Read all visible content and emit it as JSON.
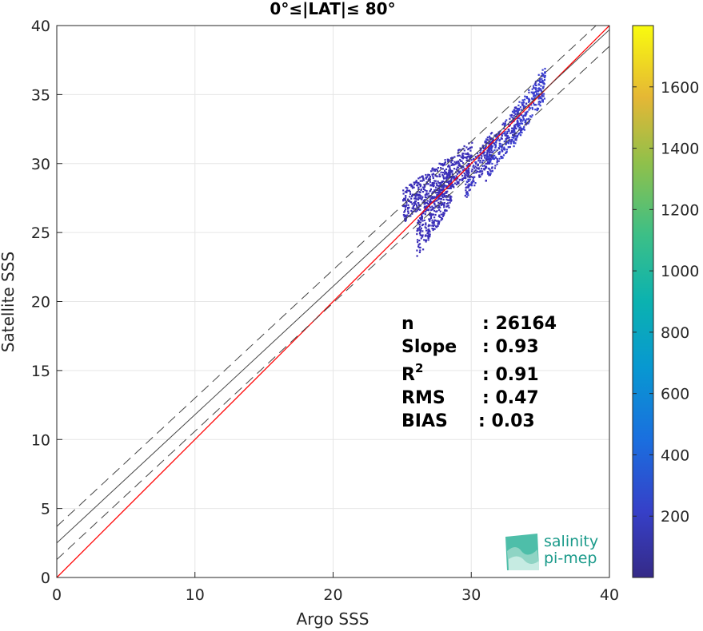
{
  "chart_data": {
    "type": "heatmap",
    "title": "0°≤|LAT|≤ 80°",
    "xlabel": "Argo SSS",
    "ylabel": "Satellite SSS",
    "xlim": [
      0,
      40
    ],
    "ylim": [
      0,
      40
    ],
    "xticks": [
      "0",
      "10",
      "20",
      "30",
      "40"
    ],
    "yticks": [
      "0",
      "5",
      "10",
      "15",
      "20",
      "25",
      "30",
      "35",
      "40"
    ],
    "grid": true,
    "colorbar": {
      "colormap": "parula",
      "range": [
        0,
        1800
      ],
      "ticks": [
        "200",
        "400",
        "600",
        "800",
        "1000",
        "1200",
        "1400",
        "1600"
      ]
    },
    "lines": [
      {
        "name": "identity",
        "color": "#ff0000",
        "slope": 1.0,
        "intercept": 0.0,
        "style": "solid"
      },
      {
        "name": "regression",
        "color": "#444444",
        "slope": 0.93,
        "intercept": 2.5,
        "style": "solid"
      },
      {
        "name": "regression-upper",
        "color": "#444444",
        "slope": 0.93,
        "intercept": 3.7,
        "style": "dashed"
      },
      {
        "name": "regression-lower",
        "color": "#444444",
        "slope": 0.93,
        "intercept": 1.3,
        "style": "dashed"
      }
    ],
    "density_regions": [
      {
        "x": [
          33.0,
          35.3
        ],
        "y": [
          32.5,
          36.0
        ],
        "level": 150
      },
      {
        "x": [
          31.0,
          33.5
        ],
        "y": [
          30.0,
          33.5
        ],
        "level": 120
      },
      {
        "x": [
          29.5,
          31.5
        ],
        "y": [
          28.5,
          31.5
        ],
        "level": 90
      },
      {
        "x": [
          26.0,
          28.5
        ],
        "y": [
          24.5,
          28.5
        ],
        "level": 60
      },
      {
        "x": [
          25.0,
          30.0
        ],
        "y": [
          27.0,
          30.5
        ],
        "level": 40
      }
    ],
    "stats": {
      "n_label": "n",
      "n_value": ": 26164",
      "slope_label": "Slope",
      "slope_value": ": 0.93",
      "r2_label": "R",
      "r2_sup": "2",
      "r2_value": ": 0.91",
      "rms_label": "RMS",
      "rms_value": ": 0.47",
      "bias_label": "BIAS",
      "bias_value": ": 0.03"
    }
  },
  "logo": {
    "line1": "salinity",
    "line2": "pi-mep",
    "color": "#1a9a8a"
  }
}
